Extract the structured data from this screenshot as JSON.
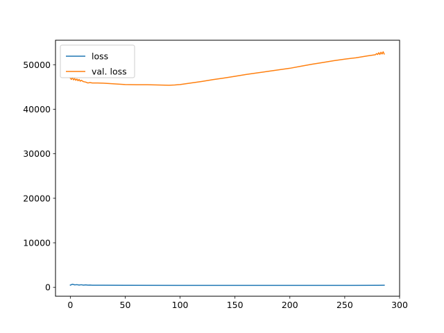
{
  "chart_data": {
    "type": "line",
    "title": "",
    "xlabel": "",
    "ylabel": "",
    "xlim": [
      -13.5,
      300
    ],
    "ylim": [
      -2000,
      55500
    ],
    "xticks": [
      0,
      50,
      100,
      150,
      200,
      250,
      300
    ],
    "yticks": [
      0,
      10000,
      20000,
      30000,
      40000,
      50000
    ],
    "grid": false,
    "legend": {
      "position": "upper-left",
      "entries": [
        "loss",
        "val. loss"
      ]
    },
    "series": [
      {
        "name": "loss",
        "color": "#1f77b4",
        "x": [
          0,
          2,
          4,
          6,
          8,
          10,
          12,
          14,
          16,
          18,
          20,
          30,
          50,
          100,
          150,
          200,
          250,
          280,
          286
        ],
        "y": [
          500,
          700,
          550,
          600,
          520,
          580,
          500,
          560,
          490,
          520,
          480,
          470,
          460,
          440,
          430,
          430,
          440,
          450,
          480
        ]
      },
      {
        "name": "val. loss",
        "color": "#ff7f0e",
        "x": [
          0,
          1,
          2,
          3,
          4,
          5,
          6,
          7,
          8,
          9,
          10,
          12,
          14,
          16,
          18,
          20,
          25,
          30,
          40,
          50,
          60,
          70,
          80,
          90,
          95,
          100,
          110,
          120,
          130,
          140,
          150,
          160,
          170,
          180,
          190,
          200,
          210,
          220,
          230,
          240,
          250,
          260,
          270,
          278,
          279,
          280,
          281,
          282,
          283,
          284,
          285,
          286
        ],
        "y": [
          47000,
          46700,
          47100,
          46600,
          46900,
          46500,
          46800,
          46400,
          46700,
          46300,
          46500,
          46200,
          46100,
          45900,
          46000,
          45900,
          45900,
          45850,
          45700,
          45550,
          45500,
          45500,
          45450,
          45400,
          45450,
          45550,
          45900,
          46250,
          46650,
          47000,
          47400,
          47800,
          48150,
          48500,
          48850,
          49200,
          49650,
          50100,
          50500,
          50900,
          51250,
          51550,
          51950,
          52250,
          52500,
          52300,
          52700,
          52300,
          52800,
          52400,
          52900,
          52400
        ]
      }
    ]
  }
}
